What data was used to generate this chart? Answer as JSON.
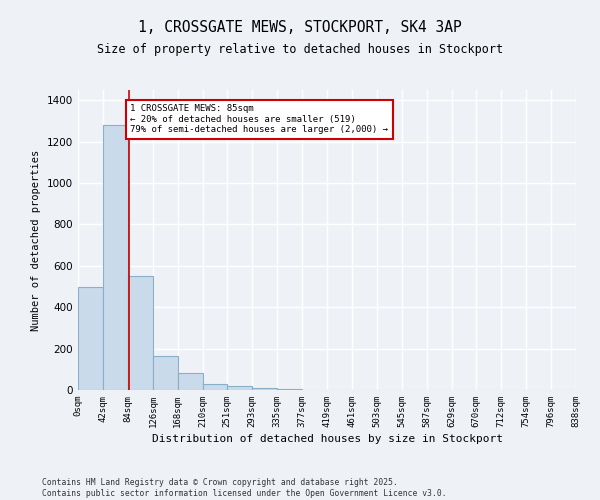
{
  "title_line1": "1, CROSSGATE MEWS, STOCKPORT, SK4 3AP",
  "title_line2": "Size of property relative to detached houses in Stockport",
  "xlabel": "Distribution of detached houses by size in Stockport",
  "ylabel": "Number of detached properties",
  "bin_edges": [
    0,
    42,
    84,
    126,
    168,
    210,
    251,
    293,
    335,
    377,
    419,
    461,
    503,
    545,
    587,
    629,
    670,
    712,
    754,
    796,
    838
  ],
  "bar_heights": [
    500,
    1280,
    550,
    165,
    80,
    30,
    20,
    10,
    5,
    2,
    2,
    0,
    0,
    0,
    0,
    0,
    0,
    0,
    0,
    0
  ],
  "bar_color": "#c9daea",
  "bar_edgecolor": "#8aafc8",
  "property_line_x": 85,
  "property_line_color": "#cc0000",
  "annotation_text": "1 CROSSGATE MEWS: 85sqm\n← 20% of detached houses are smaller (519)\n79% of semi-detached houses are larger (2,000) →",
  "annotation_box_color": "#ffffff",
  "annotation_box_edgecolor": "#cc0000",
  "ylim": [
    0,
    1450
  ],
  "yticks": [
    0,
    200,
    400,
    600,
    800,
    1000,
    1200,
    1400
  ],
  "tick_labels": [
    "0sqm",
    "42sqm",
    "84sqm",
    "126sqm",
    "168sqm",
    "210sqm",
    "251sqm",
    "293sqm",
    "335sqm",
    "377sqm",
    "419sqm",
    "461sqm",
    "503sqm",
    "545sqm",
    "587sqm",
    "629sqm",
    "670sqm",
    "712sqm",
    "754sqm",
    "796sqm",
    "838sqm"
  ],
  "footnote": "Contains HM Land Registry data © Crown copyright and database right 2025.\nContains public sector information licensed under the Open Government Licence v3.0.",
  "background_color": "#eef2f7",
  "grid_color": "#ffffff",
  "figsize": [
    6.0,
    5.0
  ],
  "dpi": 100
}
